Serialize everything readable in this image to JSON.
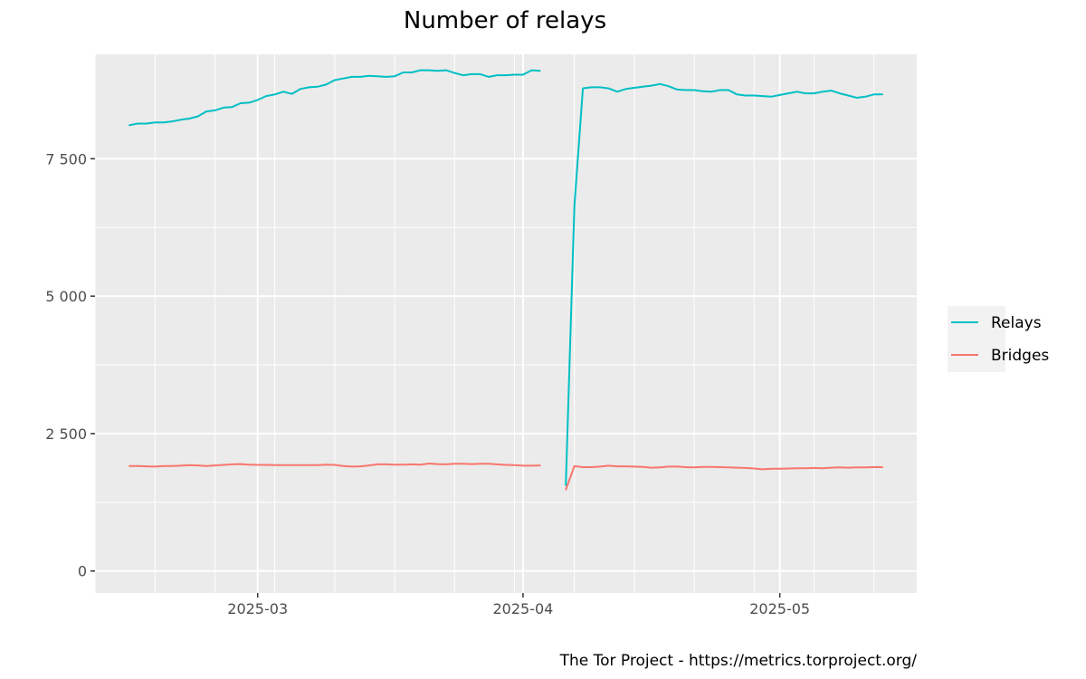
{
  "chart_data": {
    "type": "line",
    "title": "Number of relays",
    "caption": "The Tor Project - https://metrics.torproject.org/",
    "xlabel": "",
    "ylabel": "",
    "ylim": [
      -400,
      9400
    ],
    "xlim": [
      "2025-02-10",
      "2025-05-17"
    ],
    "y_ticks": [
      0,
      2500,
      5000,
      7500
    ],
    "y_tick_labels": [
      "0",
      "2 500",
      "5 000",
      "7 500"
    ],
    "x_ticks": [
      "2025-03-01",
      "2025-04-01",
      "2025-05-01"
    ],
    "x_tick_labels": [
      "2025-03",
      "2025-04",
      "2025-05"
    ],
    "grid": true,
    "legend_position": "right",
    "series": [
      {
        "name": "Relays",
        "color": "#00BFC4",
        "segments": [
          [
            [
              "2025-02-14",
              8110
            ],
            [
              "2025-02-15",
              8140
            ],
            [
              "2025-02-16",
              8140
            ],
            [
              "2025-02-17",
              8160
            ],
            [
              "2025-02-18",
              8160
            ],
            [
              "2025-02-19",
              8180
            ],
            [
              "2025-02-20",
              8210
            ],
            [
              "2025-02-21",
              8230
            ],
            [
              "2025-02-22",
              8270
            ],
            [
              "2025-02-23",
              8360
            ],
            [
              "2025-02-24",
              8380
            ],
            [
              "2025-02-25",
              8430
            ],
            [
              "2025-02-26",
              8440
            ],
            [
              "2025-02-27",
              8510
            ],
            [
              "2025-02-28",
              8520
            ],
            [
              "2025-03-01",
              8570
            ],
            [
              "2025-03-02",
              8640
            ],
            [
              "2025-03-03",
              8670
            ],
            [
              "2025-03-04",
              8720
            ],
            [
              "2025-03-05",
              8680
            ],
            [
              "2025-03-06",
              8770
            ],
            [
              "2025-03-07",
              8800
            ],
            [
              "2025-03-08",
              8810
            ],
            [
              "2025-03-09",
              8850
            ],
            [
              "2025-03-10",
              8930
            ],
            [
              "2025-03-11",
              8960
            ],
            [
              "2025-03-12",
              8990
            ],
            [
              "2025-03-13",
              8990
            ],
            [
              "2025-03-14",
              9010
            ],
            [
              "2025-03-15",
              9000
            ],
            [
              "2025-03-16",
              8990
            ],
            [
              "2025-03-17",
              9000
            ],
            [
              "2025-03-18",
              9070
            ],
            [
              "2025-03-19",
              9070
            ],
            [
              "2025-03-20",
              9110
            ],
            [
              "2025-03-21",
              9110
            ],
            [
              "2025-03-22",
              9100
            ],
            [
              "2025-03-23",
              9110
            ],
            [
              "2025-03-24",
              9060
            ],
            [
              "2025-03-25",
              9020
            ],
            [
              "2025-03-26",
              9040
            ],
            [
              "2025-03-27",
              9040
            ],
            [
              "2025-03-28",
              8990
            ],
            [
              "2025-03-29",
              9020
            ],
            [
              "2025-03-30",
              9020
            ],
            [
              "2025-03-31",
              9030
            ],
            [
              "2025-04-01",
              9030
            ],
            [
              "2025-04-02",
              9110
            ],
            [
              "2025-04-03",
              9100
            ]
          ],
          [
            [
              "2025-04-06",
              1560
            ],
            [
              "2025-04-07",
              6640
            ],
            [
              "2025-04-08",
              8780
            ],
            [
              "2025-04-09",
              8800
            ],
            [
              "2025-04-10",
              8800
            ],
            [
              "2025-04-11",
              8780
            ],
            [
              "2025-04-12",
              8720
            ],
            [
              "2025-04-13",
              8770
            ],
            [
              "2025-04-14",
              8790
            ],
            [
              "2025-04-15",
              8810
            ],
            [
              "2025-04-16",
              8830
            ],
            [
              "2025-04-17",
              8860
            ],
            [
              "2025-04-18",
              8820
            ],
            [
              "2025-04-19",
              8760
            ],
            [
              "2025-04-20",
              8750
            ],
            [
              "2025-04-21",
              8750
            ],
            [
              "2025-04-22",
              8730
            ],
            [
              "2025-04-23",
              8720
            ],
            [
              "2025-04-24",
              8750
            ],
            [
              "2025-04-25",
              8750
            ],
            [
              "2025-04-26",
              8670
            ],
            [
              "2025-04-27",
              8650
            ],
            [
              "2025-04-28",
              8650
            ],
            [
              "2025-04-29",
              8640
            ],
            [
              "2025-04-30",
              8630
            ],
            [
              "2025-05-01",
              8660
            ],
            [
              "2025-05-02",
              8690
            ],
            [
              "2025-05-03",
              8720
            ],
            [
              "2025-05-04",
              8690
            ],
            [
              "2025-05-05",
              8690
            ],
            [
              "2025-05-06",
              8720
            ],
            [
              "2025-05-07",
              8740
            ],
            [
              "2025-05-08",
              8690
            ],
            [
              "2025-05-09",
              8650
            ],
            [
              "2025-05-10",
              8610
            ],
            [
              "2025-05-11",
              8630
            ],
            [
              "2025-05-12",
              8670
            ],
            [
              "2025-05-13",
              8670
            ]
          ]
        ]
      },
      {
        "name": "Bridges",
        "color": "#F8766D",
        "segments": [
          [
            [
              "2025-02-14",
              1910
            ],
            [
              "2025-02-15",
              1910
            ],
            [
              "2025-02-16",
              1905
            ],
            [
              "2025-02-17",
              1900
            ],
            [
              "2025-02-18",
              1910
            ],
            [
              "2025-02-19",
              1910
            ],
            [
              "2025-02-20",
              1915
            ],
            [
              "2025-02-21",
              1925
            ],
            [
              "2025-02-22",
              1920
            ],
            [
              "2025-02-23",
              1910
            ],
            [
              "2025-02-24",
              1920
            ],
            [
              "2025-02-25",
              1930
            ],
            [
              "2025-02-26",
              1940
            ],
            [
              "2025-02-27",
              1945
            ],
            [
              "2025-02-28",
              1935
            ],
            [
              "2025-03-01",
              1930
            ],
            [
              "2025-03-02",
              1930
            ],
            [
              "2025-03-03",
              1925
            ],
            [
              "2025-03-04",
              1925
            ],
            [
              "2025-03-05",
              1925
            ],
            [
              "2025-03-06",
              1925
            ],
            [
              "2025-03-07",
              1925
            ],
            [
              "2025-03-08",
              1925
            ],
            [
              "2025-03-09",
              1935
            ],
            [
              "2025-03-10",
              1930
            ],
            [
              "2025-03-11",
              1910
            ],
            [
              "2025-03-12",
              1900
            ],
            [
              "2025-03-13",
              1905
            ],
            [
              "2025-03-14",
              1920
            ],
            [
              "2025-03-15",
              1940
            ],
            [
              "2025-03-16",
              1940
            ],
            [
              "2025-03-17",
              1935
            ],
            [
              "2025-03-18",
              1935
            ],
            [
              "2025-03-19",
              1940
            ],
            [
              "2025-03-20",
              1935
            ],
            [
              "2025-03-21",
              1955
            ],
            [
              "2025-03-22",
              1945
            ],
            [
              "2025-03-23",
              1940
            ],
            [
              "2025-03-24",
              1950
            ],
            [
              "2025-03-25",
              1950
            ],
            [
              "2025-03-26",
              1945
            ],
            [
              "2025-03-27",
              1950
            ],
            [
              "2025-03-28",
              1950
            ],
            [
              "2025-03-29",
              1940
            ],
            [
              "2025-03-30",
              1930
            ],
            [
              "2025-03-31",
              1925
            ],
            [
              "2025-04-01",
              1915
            ],
            [
              "2025-04-02",
              1915
            ],
            [
              "2025-04-03",
              1920
            ]
          ],
          [
            [
              "2025-04-06",
              1480
            ],
            [
              "2025-04-07",
              1910
            ],
            [
              "2025-04-08",
              1890
            ],
            [
              "2025-04-09",
              1890
            ],
            [
              "2025-04-10",
              1900
            ],
            [
              "2025-04-11",
              1915
            ],
            [
              "2025-04-12",
              1905
            ],
            [
              "2025-04-13",
              1905
            ],
            [
              "2025-04-14",
              1900
            ],
            [
              "2025-04-15",
              1895
            ],
            [
              "2025-04-16",
              1880
            ],
            [
              "2025-04-17",
              1885
            ],
            [
              "2025-04-18",
              1900
            ],
            [
              "2025-04-19",
              1900
            ],
            [
              "2025-04-20",
              1890
            ],
            [
              "2025-04-21",
              1885
            ],
            [
              "2025-04-22",
              1895
            ],
            [
              "2025-04-23",
              1895
            ],
            [
              "2025-04-24",
              1890
            ],
            [
              "2025-04-25",
              1885
            ],
            [
              "2025-04-26",
              1880
            ],
            [
              "2025-04-27",
              1875
            ],
            [
              "2025-04-28",
              1865
            ],
            [
              "2025-04-29",
              1850
            ],
            [
              "2025-04-30",
              1860
            ],
            [
              "2025-05-01",
              1860
            ],
            [
              "2025-05-02",
              1865
            ],
            [
              "2025-05-03",
              1870
            ],
            [
              "2025-05-04",
              1870
            ],
            [
              "2025-05-05",
              1875
            ],
            [
              "2025-05-06",
              1870
            ],
            [
              "2025-05-07",
              1880
            ],
            [
              "2025-05-08",
              1885
            ],
            [
              "2025-05-09",
              1880
            ],
            [
              "2025-05-10",
              1885
            ],
            [
              "2025-05-11",
              1885
            ],
            [
              "2025-05-12",
              1890
            ],
            [
              "2025-05-13",
              1890
            ]
          ]
        ]
      }
    ]
  }
}
